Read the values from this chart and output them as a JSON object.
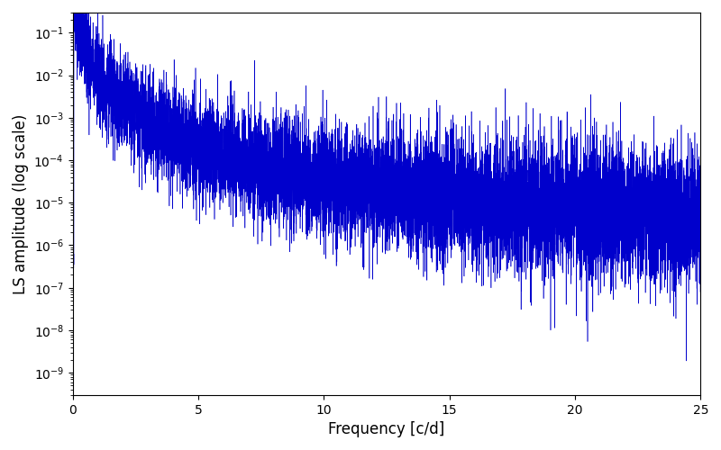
{
  "xlabel": "Frequency [c/d]",
  "ylabel": "LS amplitude (log scale)",
  "xlim": [
    0,
    25
  ],
  "ylim": [
    3e-10,
    0.3
  ],
  "line_color": "#0000cc",
  "background_color": "#ffffff",
  "xlabel_fontsize": 12,
  "ylabel_fontsize": 12,
  "tick_fontsize": 10,
  "seed": 42,
  "n_points": 10000,
  "freq_max": 25.0,
  "alpha_decay": 2.5
}
